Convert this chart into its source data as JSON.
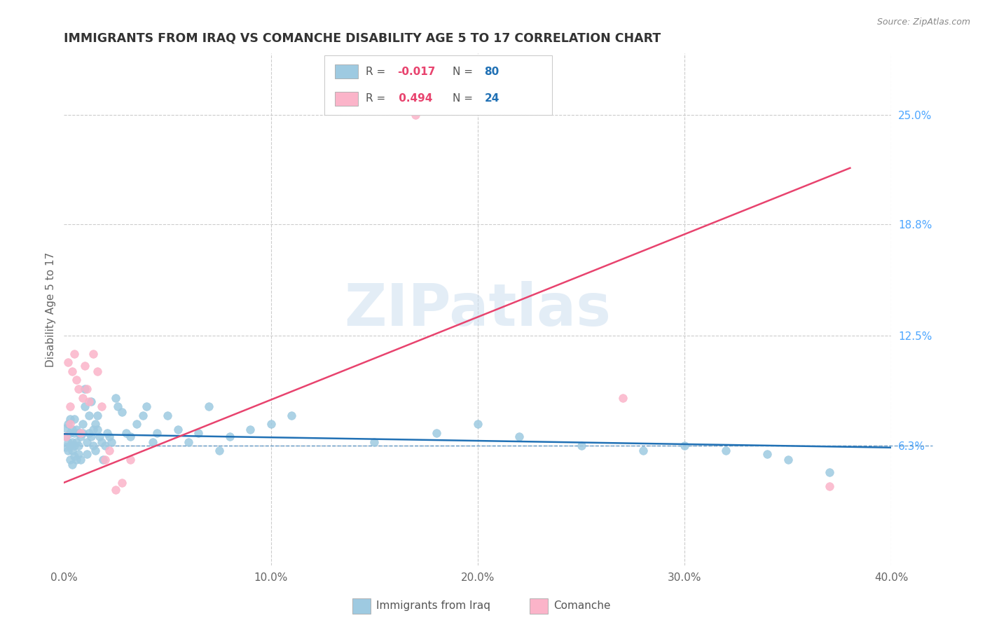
{
  "title": "IMMIGRANTS FROM IRAQ VS COMANCHE DISABILITY AGE 5 TO 17 CORRELATION CHART",
  "source": "Source: ZipAtlas.com",
  "legend_items": [
    "Immigrants from Iraq",
    "Comanche"
  ],
  "ylabel": "Disability Age 5 to 17",
  "xlim": [
    0.0,
    0.4
  ],
  "ylim": [
    -0.005,
    0.285
  ],
  "xticks": [
    0.0,
    0.1,
    0.2,
    0.3,
    0.4
  ],
  "xticklabels": [
    "0.0%",
    "10.0%",
    "20.0%",
    "30.0%",
    "40.0%"
  ],
  "ytick_vals": [
    0.063,
    0.125,
    0.188,
    0.25
  ],
  "ytick_labels": [
    "6.3%",
    "12.5%",
    "18.8%",
    "25.0%"
  ],
  "color_blue": "#9ecae1",
  "color_pink": "#fbb4c9",
  "color_trend_blue": "#2171b5",
  "color_trend_pink": "#e8436e",
  "color_ytick": "#4da6ff",
  "color_grid": "#cccccc",
  "watermark": "ZIPatlas",
  "blue_x": [
    0.001,
    0.001,
    0.001,
    0.002,
    0.002,
    0.002,
    0.003,
    0.003,
    0.003,
    0.003,
    0.004,
    0.004,
    0.004,
    0.004,
    0.005,
    0.005,
    0.005,
    0.005,
    0.006,
    0.006,
    0.006,
    0.007,
    0.007,
    0.007,
    0.008,
    0.008,
    0.009,
    0.009,
    0.01,
    0.01,
    0.011,
    0.011,
    0.012,
    0.012,
    0.013,
    0.013,
    0.014,
    0.014,
    0.015,
    0.015,
    0.016,
    0.016,
    0.017,
    0.018,
    0.019,
    0.02,
    0.021,
    0.022,
    0.023,
    0.025,
    0.026,
    0.028,
    0.03,
    0.032,
    0.035,
    0.038,
    0.04,
    0.043,
    0.045,
    0.05,
    0.055,
    0.06,
    0.065,
    0.07,
    0.075,
    0.08,
    0.09,
    0.1,
    0.11,
    0.15,
    0.18,
    0.2,
    0.22,
    0.25,
    0.28,
    0.3,
    0.32,
    0.34,
    0.35,
    0.37
  ],
  "blue_y": [
    0.062,
    0.068,
    0.073,
    0.06,
    0.065,
    0.075,
    0.055,
    0.063,
    0.07,
    0.078,
    0.052,
    0.06,
    0.065,
    0.072,
    0.057,
    0.063,
    0.07,
    0.078,
    0.055,
    0.065,
    0.072,
    0.058,
    0.063,
    0.07,
    0.055,
    0.068,
    0.07,
    0.075,
    0.085,
    0.095,
    0.058,
    0.065,
    0.07,
    0.08,
    0.088,
    0.068,
    0.063,
    0.072,
    0.06,
    0.075,
    0.08,
    0.072,
    0.068,
    0.065,
    0.055,
    0.063,
    0.07,
    0.068,
    0.065,
    0.09,
    0.085,
    0.082,
    0.07,
    0.068,
    0.075,
    0.08,
    0.085,
    0.065,
    0.07,
    0.08,
    0.072,
    0.065,
    0.07,
    0.085,
    0.06,
    0.068,
    0.072,
    0.075,
    0.08,
    0.065,
    0.07,
    0.075,
    0.068,
    0.063,
    0.06,
    0.063,
    0.06,
    0.058,
    0.055,
    0.048
  ],
  "pink_x": [
    0.001,
    0.002,
    0.003,
    0.003,
    0.004,
    0.005,
    0.006,
    0.007,
    0.008,
    0.009,
    0.01,
    0.011,
    0.012,
    0.014,
    0.016,
    0.018,
    0.02,
    0.022,
    0.025,
    0.028,
    0.032,
    0.17,
    0.27,
    0.37
  ],
  "pink_y": [
    0.068,
    0.11,
    0.075,
    0.085,
    0.105,
    0.115,
    0.1,
    0.095,
    0.07,
    0.09,
    0.108,
    0.095,
    0.088,
    0.115,
    0.105,
    0.085,
    0.055,
    0.06,
    0.038,
    0.042,
    0.055,
    0.25,
    0.09,
    0.04
  ],
  "blue_trend_x": [
    0.0,
    0.4
  ],
  "blue_trend_y": [
    0.0695,
    0.0618
  ],
  "pink_trend_x": [
    0.0,
    0.38
  ],
  "pink_trend_y": [
    0.042,
    0.22
  ]
}
